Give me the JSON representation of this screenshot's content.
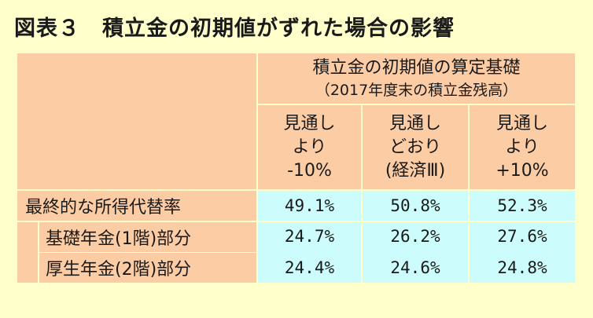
{
  "title": "図表３　積立金の初期値がずれた場合の影響",
  "header": {
    "group_title": "積立金の初期値の算定基礎",
    "group_subtitle": "（2017年度末の積立金残高）",
    "columns": [
      {
        "lines": [
          "見通し",
          "より",
          "-10%"
        ]
      },
      {
        "lines": [
          "見通し",
          "どおり",
          "(経済Ⅲ)"
        ]
      },
      {
        "lines": [
          "見通し",
          "より",
          "+10%"
        ]
      }
    ]
  },
  "rows": [
    {
      "label": "最終的な所得代替率",
      "values": [
        "49.1%",
        "50.8%",
        "52.3%"
      ]
    },
    {
      "label": "基礎年金(1階)部分",
      "values": [
        "24.7%",
        "26.2%",
        "27.6%"
      ]
    },
    {
      "label": "厚生年金(2階)部分",
      "values": [
        "24.4%",
        "24.6%",
        "24.8%"
      ]
    }
  ],
  "colors": {
    "background": "#ffffcc",
    "header_fill": "#fccca4",
    "value_fill": "#ccfcfc"
  }
}
